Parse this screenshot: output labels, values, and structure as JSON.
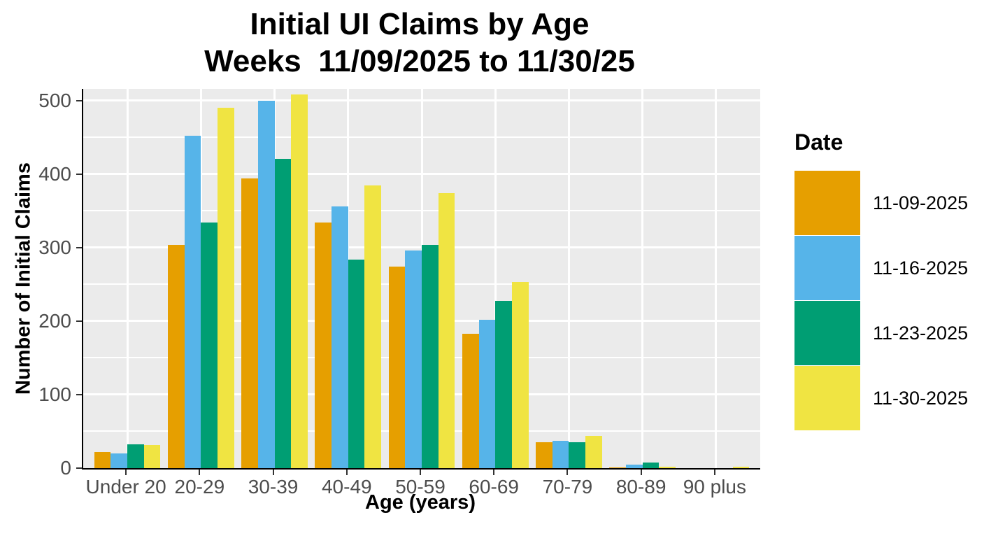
{
  "title": {
    "line1": "Initial UI Claims by Age",
    "line2": "Weeks  11/09/2025 to 11/30/25"
  },
  "chart_data": {
    "type": "bar",
    "title": "Initial UI Claims by Age — Weeks 11/09/2025 to 11/30/25",
    "categories": [
      "Under 20",
      "20-29",
      "30-39",
      "40-49",
      "50-59",
      "60-69",
      "70-79",
      "80-89",
      "90 plus"
    ],
    "series": [
      {
        "name": "11-09-2025",
        "color": "#E69F00",
        "values": [
          22,
          304,
          394,
          334,
          274,
          183,
          35,
          1,
          0
        ]
      },
      {
        "name": "11-16-2025",
        "color": "#56B4E9",
        "values": [
          20,
          452,
          500,
          356,
          296,
          202,
          37,
          5,
          0
        ]
      },
      {
        "name": "11-23-2025",
        "color": "#009E73",
        "values": [
          32,
          334,
          421,
          284,
          304,
          228,
          35,
          8,
          0
        ]
      },
      {
        "name": "11-30-2025",
        "color": "#F0E442",
        "values": [
          31,
          490,
          508,
          385,
          374,
          253,
          44,
          2,
          2
        ]
      }
    ],
    "xlabel": "Age (years)",
    "ylabel": "Number of Initial Claims",
    "ylim": [
      0,
      516
    ],
    "yticks": [
      0,
      100,
      200,
      300,
      400,
      500
    ],
    "minor_grid_step": 50,
    "grid": "on",
    "legend_title": "Date",
    "legend_position": "right"
  },
  "style": {
    "panel_background": "#EBEBEB",
    "grid_color": "#FFFFFF",
    "axis_line_color": "#000000",
    "tick_label_color": "#4D4D4D",
    "page_background": "#FFFFFF"
  }
}
